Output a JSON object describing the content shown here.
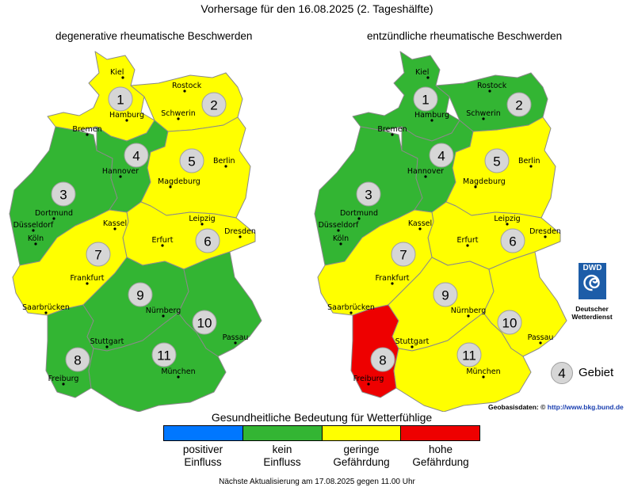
{
  "title": "Vorhersage für den 16.08.2025 (2. Tageshälfte)",
  "maps": [
    {
      "title": "degenerative rheumatische Beschwerden",
      "areas": [
        {
          "id": "1",
          "label": "1",
          "level": "geringe Gefährdung",
          "color": "#ffff00"
        },
        {
          "id": "2",
          "label": "2",
          "level": "geringe Gefährdung",
          "color": "#ffff00"
        },
        {
          "id": "3",
          "label": "3",
          "level": "kein Einfluss",
          "color": "#33b533"
        },
        {
          "id": "4",
          "label": "4",
          "level": "kein Einfluss",
          "color": "#33b533"
        },
        {
          "id": "5",
          "label": "5",
          "level": "geringe Gefährdung",
          "color": "#ffff00"
        },
        {
          "id": "6",
          "label": "6",
          "level": "geringe Gefährdung",
          "color": "#ffff00"
        },
        {
          "id": "7",
          "label": "7",
          "level": "geringe Gefährdung",
          "color": "#ffff00"
        },
        {
          "id": "8",
          "label": "8",
          "level": "kein Einfluss",
          "color": "#33b533"
        },
        {
          "id": "9",
          "label": "9",
          "level": "kein Einfluss",
          "color": "#33b533"
        },
        {
          "id": "10",
          "label": "10",
          "level": "kein Einfluss",
          "color": "#33b533"
        },
        {
          "id": "11",
          "label": "11",
          "level": "kein Einfluss",
          "color": "#33b533"
        }
      ]
    },
    {
      "title": "entzündliche rheumatische Beschwerden",
      "areas": [
        {
          "id": "1",
          "label": "1",
          "level": "kein Einfluss",
          "color": "#33b533"
        },
        {
          "id": "2",
          "label": "2",
          "level": "kein Einfluss",
          "color": "#33b533"
        },
        {
          "id": "3",
          "label": "3",
          "level": "kein Einfluss",
          "color": "#33b533"
        },
        {
          "id": "4",
          "label": "4",
          "level": "kein Einfluss",
          "color": "#33b533"
        },
        {
          "id": "5",
          "label": "5",
          "level": "geringe Gefährdung",
          "color": "#ffff00"
        },
        {
          "id": "6",
          "label": "6",
          "level": "geringe Gefährdung",
          "color": "#ffff00"
        },
        {
          "id": "7",
          "label": "7",
          "level": "geringe Gefährdung",
          "color": "#ffff00"
        },
        {
          "id": "8",
          "label": "8",
          "level": "hohe Gefährdung",
          "color": "#ee0000"
        },
        {
          "id": "9",
          "label": "9",
          "level": "geringe Gefährdung",
          "color": "#ffff00"
        },
        {
          "id": "10",
          "label": "10",
          "level": "geringe Gefährdung",
          "color": "#ffff00"
        },
        {
          "id": "11",
          "label": "11",
          "level": "geringe Gefährdung",
          "color": "#ffff00"
        }
      ]
    }
  ],
  "cities": [
    "Kiel",
    "Rostock",
    "Hamburg",
    "Schwerin",
    "Bremen",
    "Hannover",
    "Berlin",
    "Magdeburg",
    "Dortmund",
    "Düsseldorf",
    "Köln",
    "Kassel",
    "Leipzig",
    "Dresden",
    "Erfurt",
    "Frankfurt",
    "Saarbrücken",
    "Nürnberg",
    "Stuttgart",
    "Passau",
    "München",
    "Freiburg"
  ],
  "legend": {
    "title": "Gesundheitliche Bedeutung für Wetterfühlige",
    "items": [
      {
        "line1": "positiver",
        "line2": "Einfluss",
        "color": "#0077ff"
      },
      {
        "line1": "kein",
        "line2": "Einfluss",
        "color": "#33b533"
      },
      {
        "line1": "geringe",
        "line2": "Gefährdung",
        "color": "#ffff00"
      },
      {
        "line1": "hohe",
        "line2": "Gefährdung",
        "color": "#ee0000"
      }
    ]
  },
  "logo": {
    "text": "DWD",
    "line1": "Deutscher",
    "line2": "Wetterdienst"
  },
  "gebiet": {
    "number": "4",
    "label": "Gebiet"
  },
  "geobasis": {
    "label": "Geobasisdaten: ©",
    "link": "http://www.bkg.bund.de"
  },
  "footer": "Nächste Aktualisierung am 17.08.2025 gegen 11.00 Uhr"
}
